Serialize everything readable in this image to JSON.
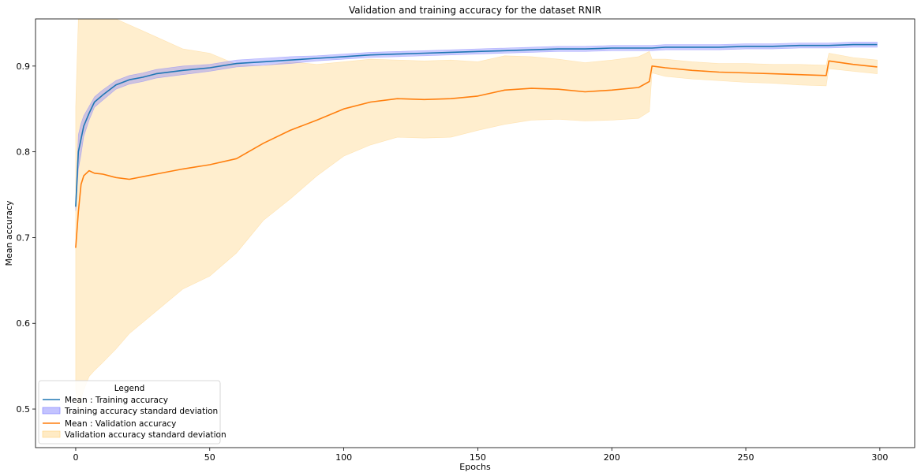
{
  "chart_data": {
    "type": "line",
    "title": "Validation and training accuracy for the dataset RNIR",
    "xlabel": "Epochs",
    "ylabel": "Mean accuracy",
    "xlim": [
      -15,
      313
    ],
    "ylim": [
      0.455,
      0.955
    ],
    "xticks": [
      0,
      50,
      100,
      150,
      200,
      250,
      300
    ],
    "yticks": [
      0.5,
      0.6,
      0.7,
      0.8,
      0.9
    ],
    "grid": false,
    "legend": {
      "title": "Legend",
      "placement": "lower-left",
      "entries": [
        "Mean : Training accuracy",
        "Training accuracy standard deviation",
        "Mean : Validation accuracy",
        "Validation accuracy standard deviation"
      ]
    },
    "colors": {
      "training_line": "#1f77b4",
      "training_band": "#7b7bff",
      "validation_line": "#ff7f0e",
      "validation_band": "#ffd27f"
    },
    "x": [
      0,
      1,
      2,
      3,
      5,
      7,
      10,
      15,
      20,
      25,
      30,
      40,
      50,
      60,
      70,
      80,
      90,
      100,
      110,
      120,
      130,
      140,
      150,
      160,
      170,
      180,
      190,
      200,
      210,
      214,
      215,
      220,
      230,
      240,
      250,
      260,
      270,
      280,
      281,
      290,
      299
    ],
    "series": [
      {
        "name": "Mean : Training accuracy",
        "values": [
          0.736,
          0.8,
          0.815,
          0.83,
          0.845,
          0.858,
          0.866,
          0.878,
          0.884,
          0.887,
          0.891,
          0.895,
          0.898,
          0.903,
          0.905,
          0.907,
          0.909,
          0.911,
          0.913,
          0.914,
          0.915,
          0.916,
          0.917,
          0.918,
          0.919,
          0.92,
          0.92,
          0.921,
          0.921,
          0.921,
          0.921,
          0.922,
          0.922,
          0.922,
          0.923,
          0.923,
          0.924,
          0.924,
          0.924,
          0.925,
          0.925
        ],
        "std": [
          0.005,
          0.02,
          0.018,
          0.012,
          0.008,
          0.006,
          0.006,
          0.005,
          0.005,
          0.005,
          0.005,
          0.005,
          0.004,
          0.004,
          0.004,
          0.004,
          0.003,
          0.003,
          0.003,
          0.003,
          0.003,
          0.003,
          0.003,
          0.003,
          0.003,
          0.003,
          0.003,
          0.003,
          0.003,
          0.003,
          0.003,
          0.003,
          0.003,
          0.003,
          0.003,
          0.003,
          0.003,
          0.003,
          0.003,
          0.003,
          0.003
        ]
      },
      {
        "name": "Mean : Validation accuracy",
        "values": [
          0.688,
          0.73,
          0.762,
          0.772,
          0.778,
          0.775,
          0.774,
          0.77,
          0.768,
          0.771,
          0.774,
          0.78,
          0.785,
          0.792,
          0.81,
          0.825,
          0.837,
          0.85,
          0.858,
          0.862,
          0.861,
          0.862,
          0.865,
          0.872,
          0.874,
          0.873,
          0.87,
          0.872,
          0.875,
          0.882,
          0.9,
          0.898,
          0.895,
          0.893,
          0.892,
          0.891,
          0.89,
          0.889,
          0.906,
          0.902,
          0.899
        ],
        "std": [
          0.165,
          0.23,
          0.25,
          0.25,
          0.24,
          0.23,
          0.22,
          0.2,
          0.18,
          0.17,
          0.16,
          0.14,
          0.13,
          0.11,
          0.09,
          0.08,
          0.065,
          0.055,
          0.05,
          0.045,
          0.045,
          0.045,
          0.04,
          0.04,
          0.037,
          0.035,
          0.034,
          0.035,
          0.036,
          0.035,
          0.008,
          0.01,
          0.01,
          0.01,
          0.011,
          0.011,
          0.012,
          0.012,
          0.009,
          0.008,
          0.008
        ]
      }
    ]
  }
}
